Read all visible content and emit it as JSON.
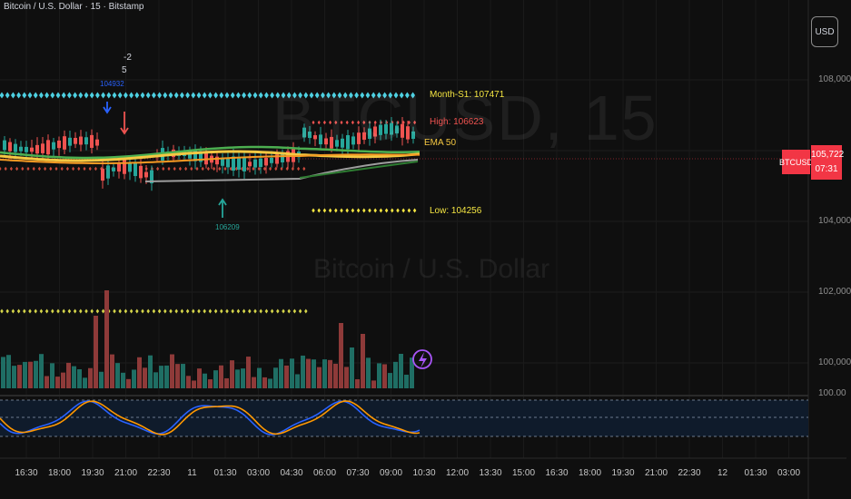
{
  "header": {
    "title": "Bitcoin / U.S. Dollar · 15 · Bitstamp",
    "currency_button": "USD"
  },
  "watermark": {
    "symbol": "BTCUSD, 15",
    "name": "Bitcoin / U.S. Dollar"
  },
  "price_axis": {
    "labels": [
      "108,000",
      "104,000",
      "102,000",
      "100,000",
      "100.00"
    ],
    "symbol_badge": "BTCUSD",
    "current_price": "105,722",
    "countdown": "07:31"
  },
  "time_axis": {
    "labels": [
      "16:30",
      "18:00",
      "19:30",
      "21:00",
      "22:30",
      "11",
      "01:30",
      "03:00",
      "04:30",
      "06:00",
      "07:30",
      "09:00",
      "10:30",
      "12:00",
      "13:30",
      "15:00",
      "16:30",
      "18:00",
      "19:30",
      "21:00",
      "22:30",
      "12",
      "01:30",
      "03:00"
    ]
  },
  "annotations": {
    "month_s1": "Month-S1: 107471",
    "high": "High: 106623",
    "ema": "EMA 50",
    "low": "Low: 104256",
    "pivot_high": "104932",
    "pivot_low": "106209",
    "marker_top1": "-2",
    "marker_top2": "5"
  },
  "colors": {
    "background": "#0f0f0f",
    "bull": "#26a69a",
    "bear": "#ef5350",
    "price_badge": "#f23645",
    "cyan_dots": "#4dd0e1",
    "yellow": "#f5e642",
    "ema_yellow": "#f5c842",
    "ema_orange": "#f59a23",
    "ema_green": "#4caf50",
    "osc_blue": "#2962ff",
    "osc_orange": "#ff9800"
  },
  "icons": {
    "reversal": "lightning-circle-icon"
  }
}
